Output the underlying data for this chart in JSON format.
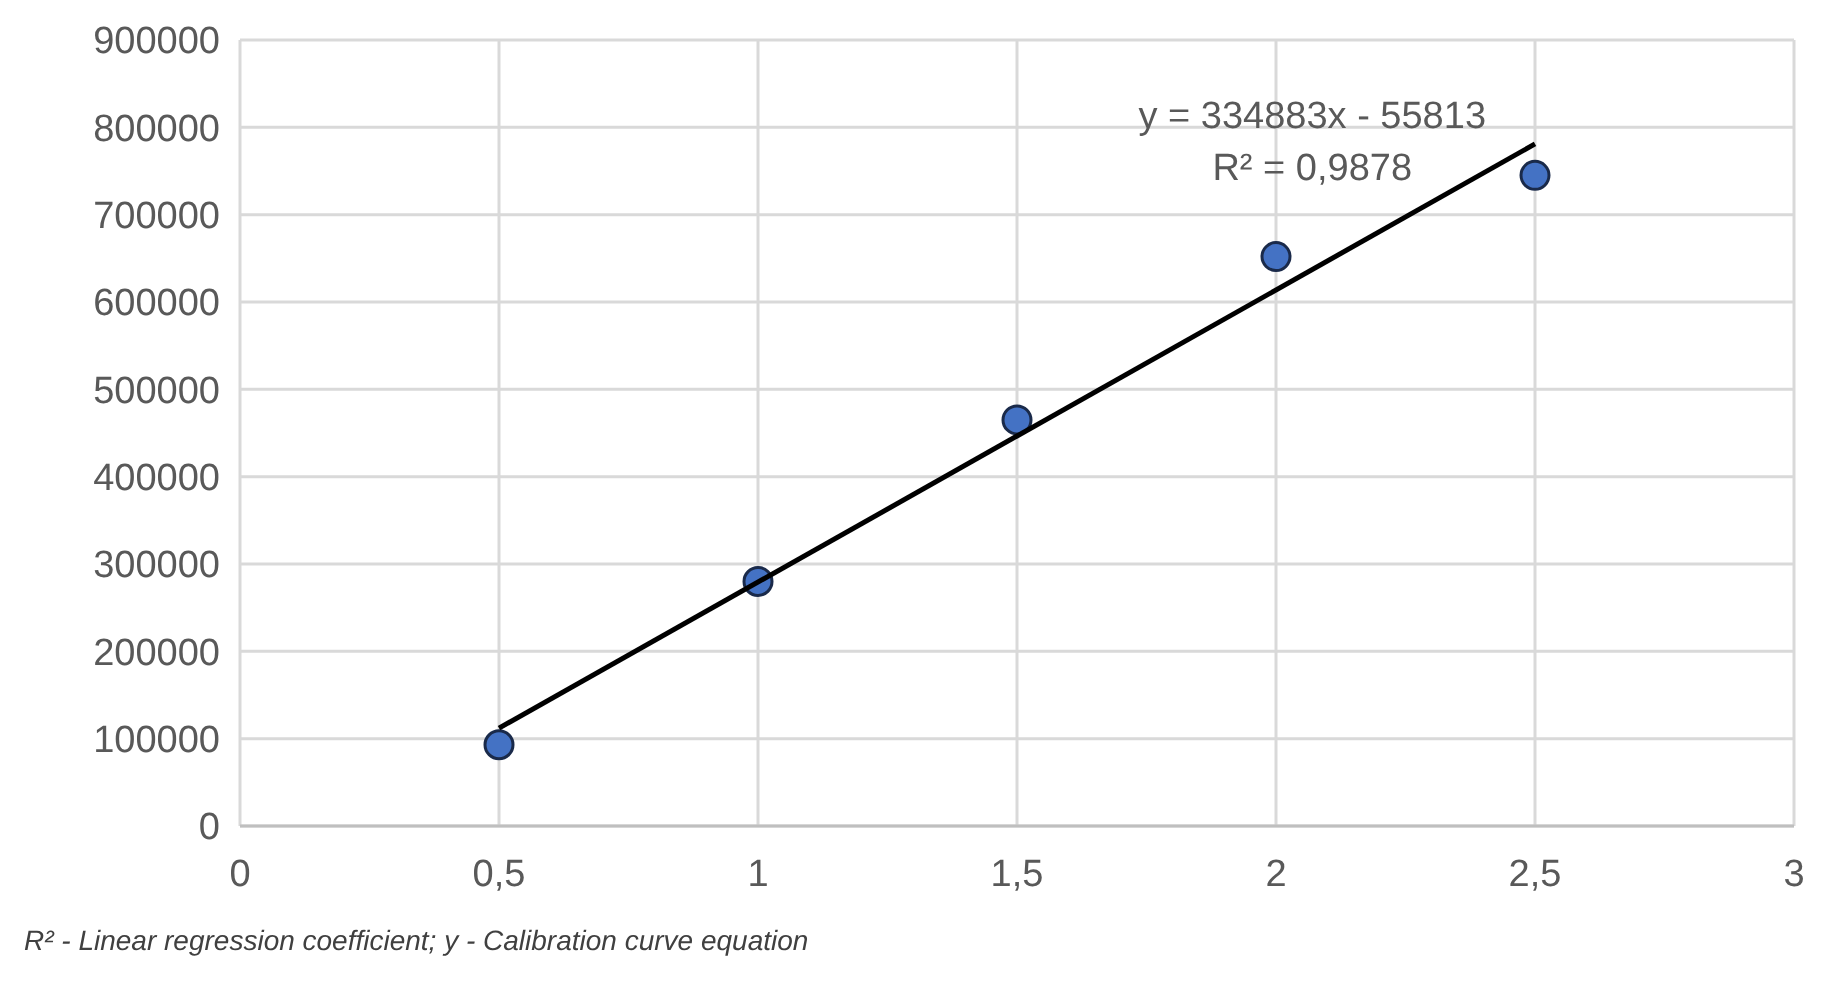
{
  "chart_data": {
    "type": "scatter",
    "x": [
      0.5,
      1,
      1.5,
      2,
      2.5
    ],
    "series": [
      {
        "color": "#4472c4",
        "values": [
          93000,
          280000,
          465000,
          652000,
          745000
        ]
      },
      {
        "type": "line",
        "color": "#000000",
        "x": [
          0.5,
          2.5
        ],
        "values": [
          112000,
          781000
        ],
        "marker": "none"
      }
    ],
    "xlim": [
      0,
      3
    ],
    "xticks": [
      0,
      {
        "value": 0.5,
        "label": "0,5"
      },
      1,
      {
        "value": 1.5,
        "label": "1,5"
      },
      2,
      {
        "value": 2.5,
        "label": "2,5"
      },
      3
    ],
    "ylim": [
      0,
      900000
    ],
    "yticks": [
      0,
      100000,
      200000,
      300000,
      400000,
      500000,
      600000,
      700000,
      800000,
      900000
    ],
    "grid": true,
    "marker": "circle",
    "annotations": [
      "y = 334883x - 55813",
      "R² = 0,9878",
      "R² - Linear regression coefficient; y - Calibration curve equation"
    ]
  }
}
